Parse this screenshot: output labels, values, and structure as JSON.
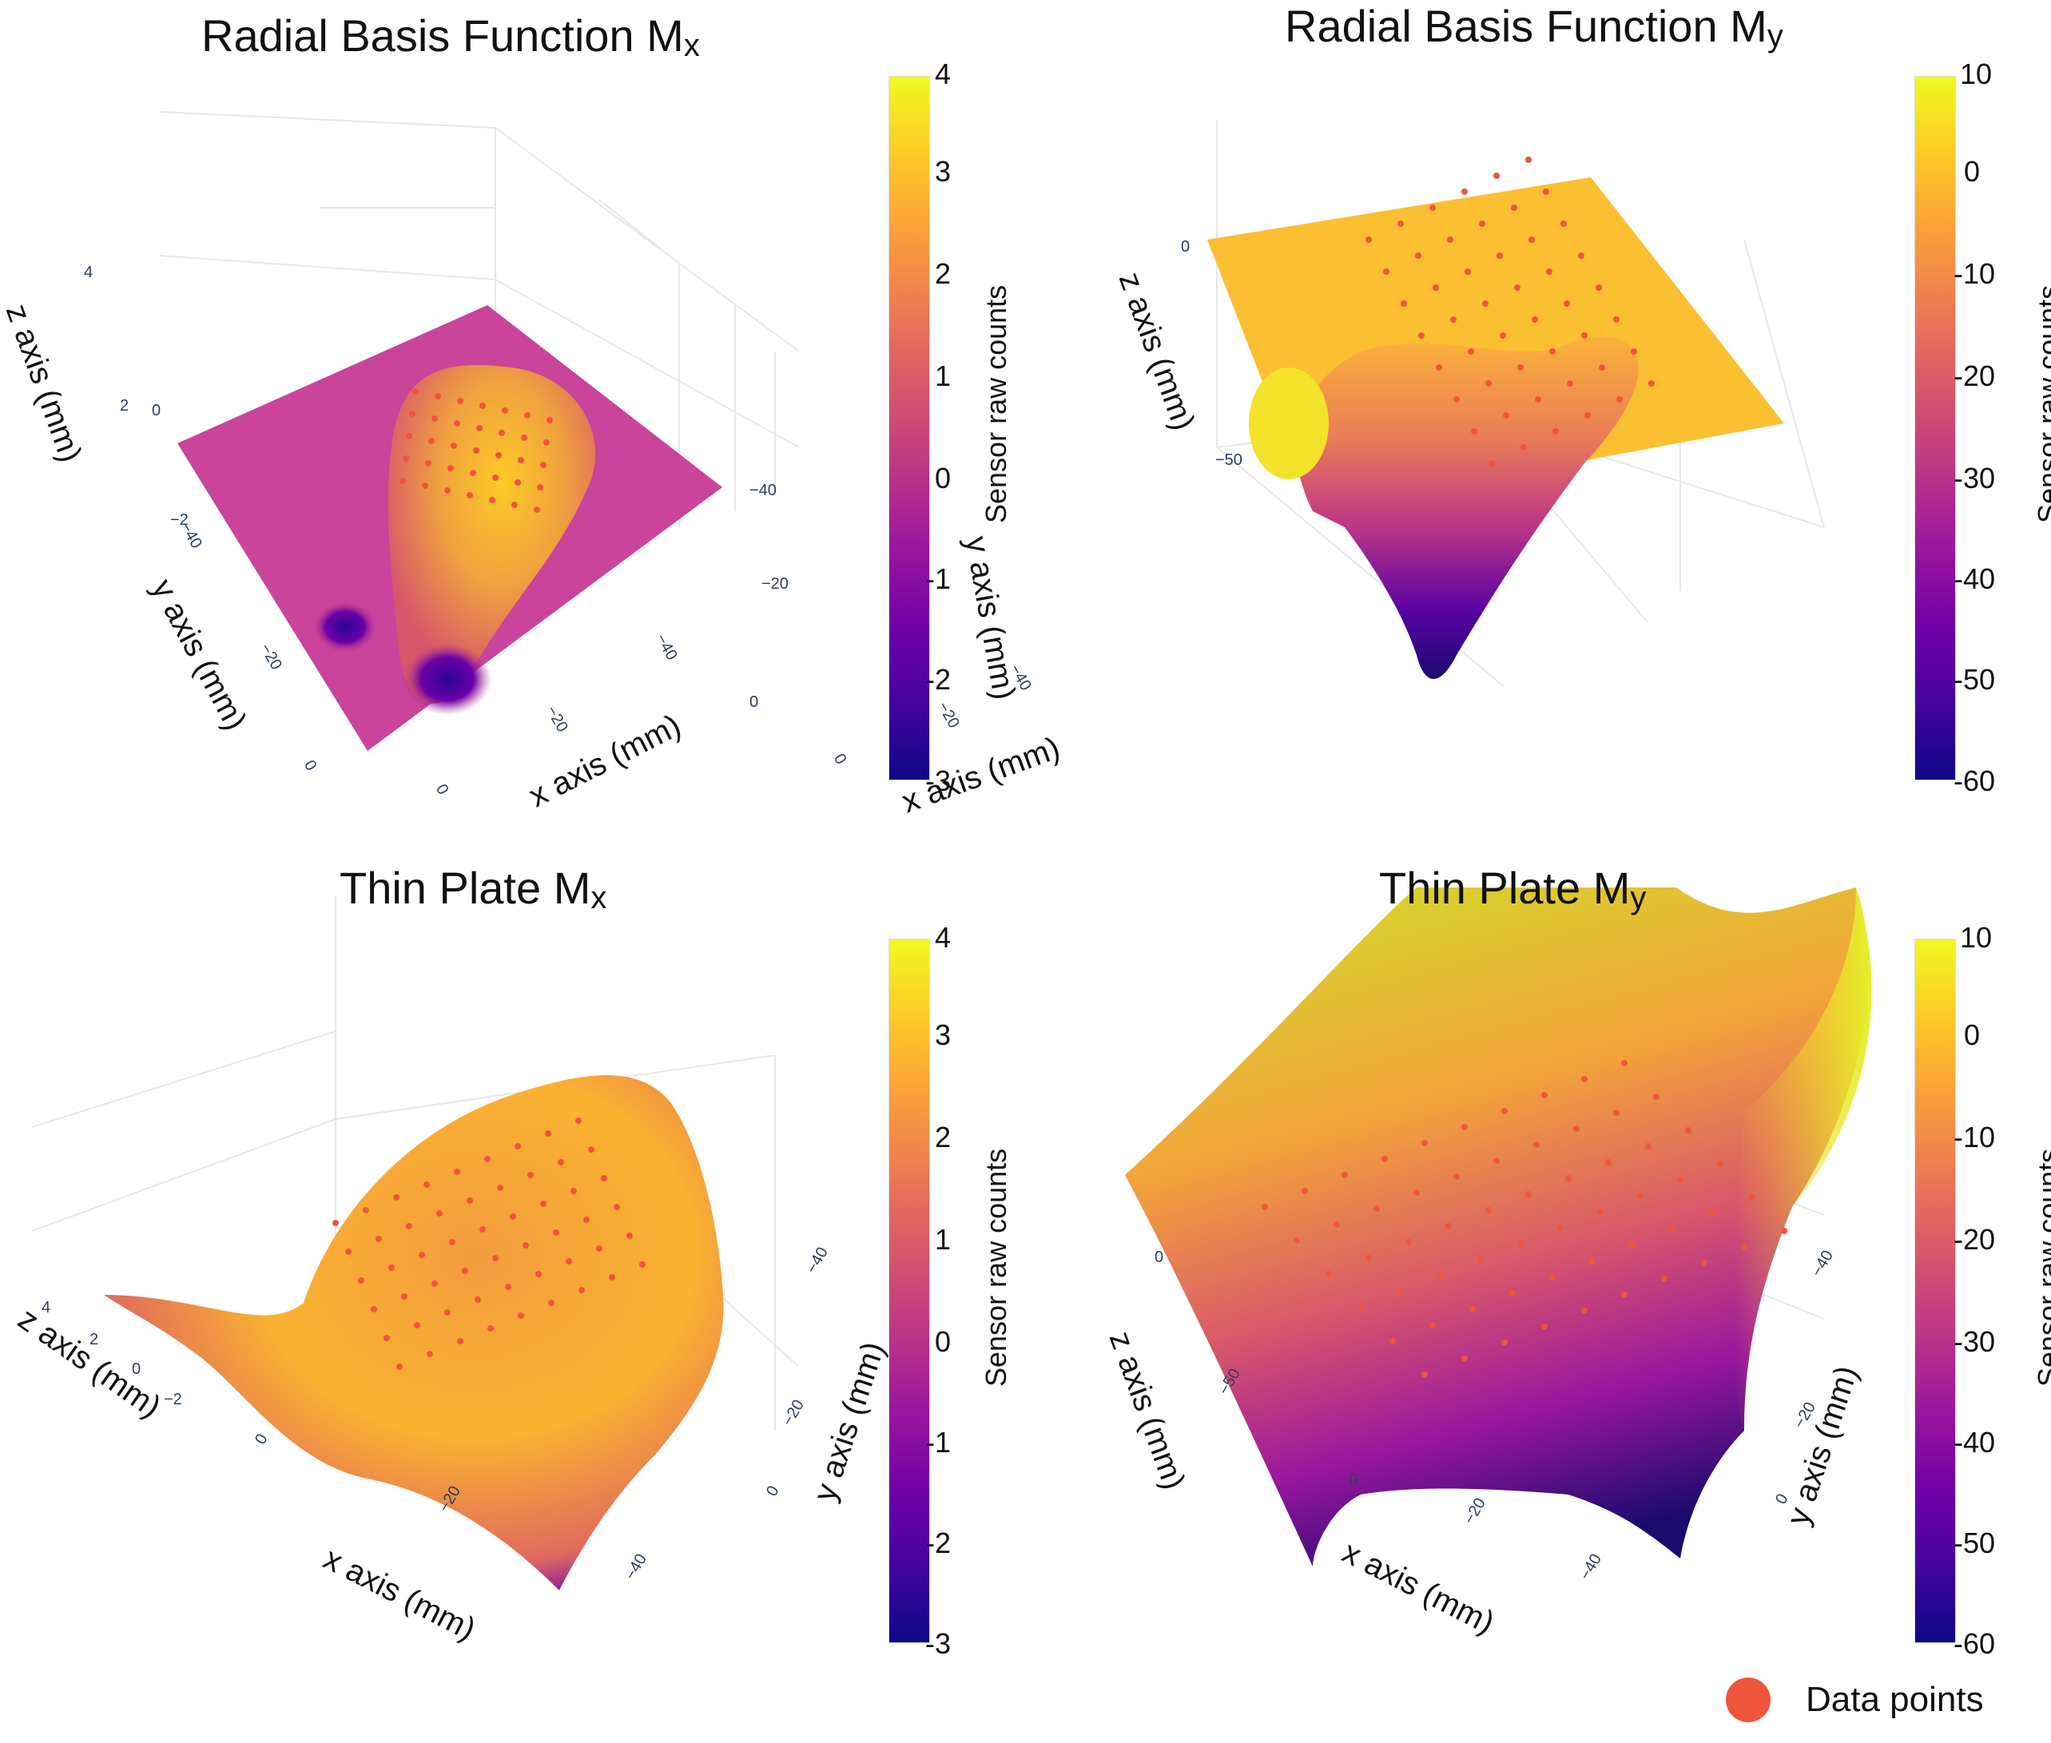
{
  "figure": {
    "legend": {
      "label": "Data points",
      "color": "#ef553b"
    },
    "colorscale": [
      "#0d0887",
      "#46039f",
      "#7201a8",
      "#9c179e",
      "#bd3786",
      "#d8576b",
      "#ed7953",
      "#fb9f3a",
      "#fdca26",
      "#f0f921"
    ],
    "grid_color": "#e5e7ee",
    "point_color": "#ef553b",
    "tick_color": "#2a3f5f"
  },
  "chart_data": [
    {
      "type": "surface",
      "title": "Radial Basis Function M",
      "title_sub": "x",
      "xlabel": "x axis (mm)",
      "ylabel": "y axis (mm)",
      "zlabel": "z axis (mm)",
      "x_ticks": [
        "0",
        "−20",
        "−40"
      ],
      "y_ticks": [
        "0",
        "−20",
        "−40"
      ],
      "z_ticks": [
        "4",
        "2",
        "0",
        "−2"
      ],
      "colorbar": {
        "title": "Sensor raw counts",
        "ticks": [
          "4",
          "3",
          "2",
          "1",
          "0",
          "-1",
          "-2",
          "-3"
        ],
        "range": [
          -3,
          4
        ]
      },
      "series": [
        {
          "name": "Data points",
          "type": "scatter3d"
        }
      ]
    },
    {
      "type": "surface",
      "title": "Radial Basis Function M",
      "title_sub": "y",
      "xlabel": "x axis (mm)",
      "ylabel": "y axis (mm)",
      "zlabel": "z axis (mm)",
      "x_ticks": [
        "0",
        "−20",
        "−40"
      ],
      "y_ticks": [
        "0",
        "−20",
        "−40"
      ],
      "z_ticks": [
        "0",
        "−50"
      ],
      "colorbar": {
        "title": "Sensor raw counts",
        "ticks": [
          "10",
          "0",
          "-10",
          "-20",
          "-30",
          "-40",
          "-50",
          "-60"
        ],
        "range": [
          -60,
          10
        ]
      },
      "series": [
        {
          "name": "Data points",
          "type": "scatter3d"
        }
      ]
    },
    {
      "type": "surface",
      "title": "Thin Plate M",
      "title_sub": "x",
      "xlabel": "x axis (mm)",
      "ylabel": "y axis (mm)",
      "zlabel": "z axis (mm)",
      "x_ticks": [
        "0",
        "−20",
        "−40"
      ],
      "y_ticks": [
        "0",
        "−20",
        "−40"
      ],
      "z_ticks": [
        "4",
        "2",
        "0",
        "−2"
      ],
      "colorbar": {
        "title": "Sensor raw counts",
        "ticks": [
          "4",
          "3",
          "2",
          "1",
          "0",
          "-1",
          "-2",
          "-3"
        ],
        "range": [
          -3,
          4
        ]
      },
      "series": [
        {
          "name": "Data points",
          "type": "scatter3d"
        }
      ]
    },
    {
      "type": "surface",
      "title": "Thin Plate M",
      "title_sub": "y",
      "xlabel": "x axis (mm)",
      "ylabel": "y axis (mm)",
      "zlabel": "z axis (mm)",
      "x_ticks": [
        "0",
        "−20",
        "−40"
      ],
      "y_ticks": [
        "0",
        "−20",
        "−40"
      ],
      "z_ticks": [
        "0",
        "−50"
      ],
      "colorbar": {
        "title": "Sensor raw counts",
        "ticks": [
          "10",
          "0",
          "-10",
          "-20",
          "-30",
          "-40",
          "-50",
          "-60"
        ],
        "range": [
          -60,
          10
        ]
      },
      "series": [
        {
          "name": "Data points",
          "type": "scatter3d"
        }
      ]
    }
  ]
}
